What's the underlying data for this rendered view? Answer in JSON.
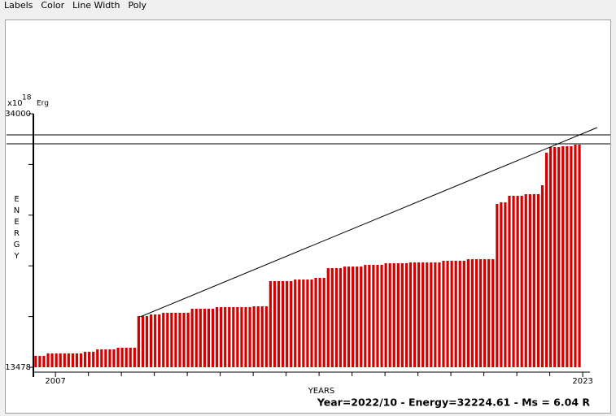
{
  "menu": [
    "Labels",
    "Color",
    "Line Width",
    "Poly"
  ],
  "chart_data": {
    "type": "bar",
    "unit_prefix": "x10",
    "unit_exponent": "18",
    "unit": "Erg",
    "ylabel": "ENERGY",
    "xlabel": "YEARS",
    "status": "Year=2022/10 - Energy=32224.61 - Ms = 6.04 R",
    "color": "#d40000",
    "xlim": [
      2006.33,
      2023.22
    ],
    "xticks": [
      2007,
      2023
    ],
    "minor_xticks": [
      2008,
      2009,
      2010,
      2011,
      2012,
      2013,
      2014,
      2015,
      2016,
      2017,
      2018,
      2019,
      2020,
      2021,
      2022
    ],
    "ylim": [
      13478,
      34000
    ],
    "yticks": [
      13478,
      34000
    ],
    "minor_yticks": [
      17582,
      21687,
      25791,
      29896
    ],
    "hlines": [
      32291,
      31568
    ],
    "trend_line": {
      "x": [
        2009.57,
        2023.44
      ],
      "y": [
        17556,
        32883
      ]
    },
    "x": [
      2006.4,
      2006.525,
      2006.65,
      2006.775,
      2006.9,
      2007.025,
      2007.15,
      2007.275,
      2007.4,
      2007.525,
      2007.65,
      2007.775,
      2007.9,
      2008.025,
      2008.15,
      2008.275,
      2008.4,
      2008.525,
      2008.65,
      2008.775,
      2008.9,
      2009.025,
      2009.15,
      2009.275,
      2009.4,
      2009.525,
      2009.65,
      2009.775,
      2009.9,
      2010.025,
      2010.15,
      2010.275,
      2010.4,
      2010.525,
      2010.65,
      2010.775,
      2010.9,
      2011.025,
      2011.15,
      2011.275,
      2011.4,
      2011.525,
      2011.65,
      2011.775,
      2011.9,
      2012.025,
      2012.15,
      2012.275,
      2012.4,
      2012.525,
      2012.65,
      2012.775,
      2012.9,
      2013.025,
      2013.15,
      2013.275,
      2013.4,
      2013.525,
      2013.65,
      2013.775,
      2013.9,
      2014.025,
      2014.15,
      2014.275,
      2014.4,
      2014.525,
      2014.65,
      2014.775,
      2014.9,
      2015.025,
      2015.15,
      2015.275,
      2015.4,
      2015.525,
      2015.65,
      2015.775,
      2015.9,
      2016.025,
      2016.15,
      2016.275,
      2016.4,
      2016.525,
      2016.65,
      2016.775,
      2016.9,
      2017.025,
      2017.15,
      2017.275,
      2017.4,
      2017.525,
      2017.65,
      2017.775,
      2017.9,
      2018.025,
      2018.15,
      2018.275,
      2018.4,
      2018.525,
      2018.65,
      2018.775,
      2018.9,
      2019.025,
      2019.15,
      2019.275,
      2019.4,
      2019.525,
      2019.65,
      2019.775,
      2019.9,
      2020.025,
      2020.15,
      2020.275,
      2020.4,
      2020.525,
      2020.65,
      2020.775,
      2020.9,
      2021.025,
      2021.15,
      2021.275,
      2021.4,
      2021.525,
      2021.65,
      2021.775,
      2021.9,
      2022.025,
      2022.15,
      2022.275,
      2022.4,
      2022.525,
      2022.65,
      2022.775,
      2022.9
    ],
    "values": [
      14400,
      14400,
      14400,
      14600,
      14600,
      14600,
      14600,
      14600,
      14600,
      14600,
      14600,
      14600,
      14730,
      14730,
      14730,
      14925,
      14925,
      14925,
      14925,
      14925,
      15060,
      15060,
      15060,
      15060,
      15060,
      17620,
      17620,
      17620,
      17755,
      17755,
      17755,
      17885,
      17885,
      17885,
      17885,
      17885,
      17885,
      17885,
      18214,
      18214,
      18214,
      18214,
      18214,
      18214,
      18345,
      18345,
      18345,
      18345,
      18345,
      18345,
      18345,
      18345,
      18345,
      18410,
      18410,
      18410,
      18410,
      20450,
      20450,
      20450,
      20450,
      20450,
      20450,
      20580,
      20580,
      20580,
      20580,
      20580,
      20715,
      20715,
      20715,
      21500,
      21500,
      21500,
      21500,
      21630,
      21630,
      21630,
      21630,
      21630,
      21770,
      21770,
      21770,
      21770,
      21770,
      21900,
      21900,
      21900,
      21900,
      21900,
      21900,
      21965,
      21965,
      21965,
      21965,
      21965,
      21965,
      21965,
      21965,
      22100,
      22100,
      22100,
      22100,
      22100,
      22100,
      22230,
      22230,
      22230,
      22230,
      22230,
      22230,
      22230,
      26700,
      26830,
      26830,
      27360,
      27360,
      27360,
      27360,
      27490,
      27490,
      27490,
      27490,
      28210,
      30845,
      31300,
      31300,
      31300,
      31370,
      31370,
      31370,
      31500,
      31500
    ]
  }
}
